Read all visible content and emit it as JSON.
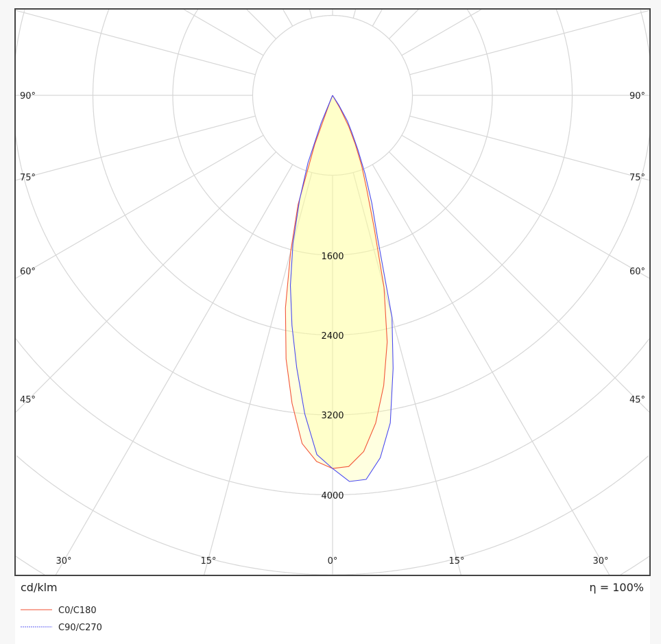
{
  "chart_data": {
    "type": "polar",
    "unit_label": "cd/klm",
    "efficiency_label": "η = 100%",
    "radial_range": [
      0,
      5600
    ],
    "radial_ticks": [
      800,
      1600,
      2400,
      3200,
      4000,
      4800,
      5600
    ],
    "radial_tick_labels": [
      "1600",
      "2400",
      "3200",
      "4000"
    ],
    "angle_step_deg": 15,
    "angle_labels": {
      "left": [
        "90°",
        "75°",
        "60°",
        "45°"
      ],
      "right": [
        "90°",
        "75°",
        "60°",
        "45°"
      ],
      "bottom": [
        "30°",
        "15°",
        "0°",
        "15°",
        "30°"
      ]
    },
    "grid": true,
    "legend_position": "bottom-left",
    "angles_deg": [
      0,
      2.5,
      5,
      7.5,
      10,
      12.5,
      15,
      17.5,
      20,
      22.5,
      25,
      27.5,
      30,
      32.5,
      35
    ],
    "series": [
      {
        "name": "C0/C180",
        "color": "#f2553a",
        "left_C180": [
          3736,
          3670,
          3500,
          3110,
          2680,
          2180,
          1620,
          1150,
          520,
          60,
          0,
          0,
          0,
          0,
          0
        ],
        "right_C0": [
          3736,
          3720,
          3580,
          3310,
          2950,
          2530,
          1990,
          1380,
          1000,
          760,
          540,
          350,
          150,
          0,
          0
        ]
      },
      {
        "name": "C90/C270",
        "color": "#4a4af0",
        "left_C270": [
          3736,
          3600,
          3200,
          2750,
          2340,
          1950,
          1530,
          1100,
          720,
          300,
          0,
          0,
          0,
          0,
          0
        ],
        "right_C90": [
          3736,
          3870,
          3860,
          3660,
          3330,
          2800,
          2300,
          1500,
          1150,
          850,
          600,
          420,
          300,
          120,
          0
        ]
      }
    ],
    "fill_color": "#ffff99",
    "grid_color": "#d6d6d6"
  }
}
